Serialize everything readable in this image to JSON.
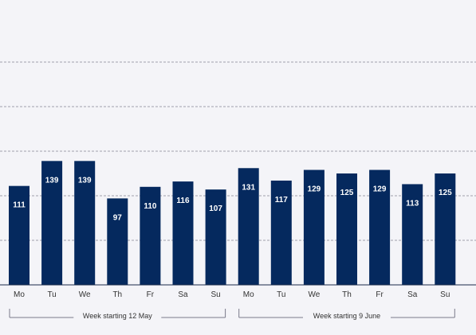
{
  "chart_data": {
    "type": "bar",
    "categories": [
      "Mo",
      "Tu",
      "We",
      "Th",
      "Fr",
      "Sa",
      "Su",
      "Mo",
      "Tu",
      "We",
      "Th",
      "Fr",
      "Sa",
      "Su"
    ],
    "values": [
      111,
      139,
      139,
      97,
      110,
      116,
      107,
      131,
      117,
      129,
      125,
      129,
      113,
      125
    ],
    "ylim": [
      0,
      280
    ],
    "gridlines": [
      0,
      50,
      100,
      150,
      200,
      250
    ],
    "groups": [
      {
        "label": "Week starting 12 May",
        "start": 0,
        "end": 6
      },
      {
        "label": "Week starting 9 June",
        "start": 7,
        "end": 13
      }
    ],
    "grid": true
  },
  "colors": {
    "bar": "#05295e",
    "bar_label": "#ffffff",
    "grid": "#a0a0ac",
    "axis": "#1a2a4a",
    "text": "#333333",
    "background": "#f4f4f8"
  }
}
